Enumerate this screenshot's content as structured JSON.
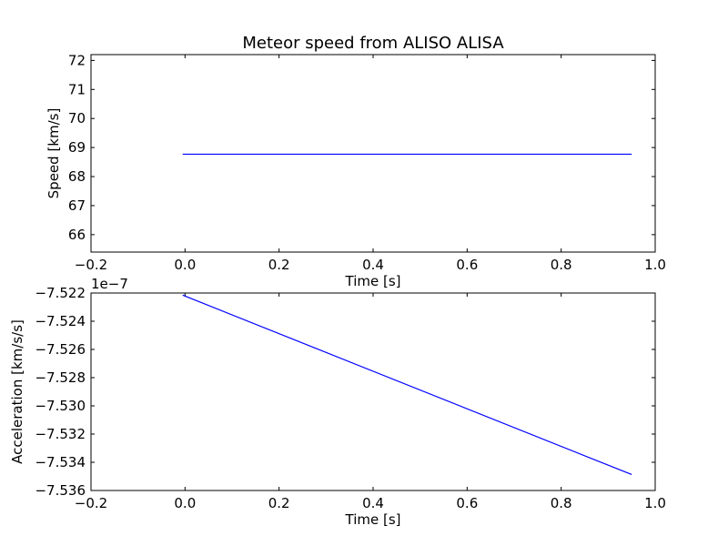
{
  "chart_data": [
    {
      "type": "line",
      "title": "Meteor speed from  ALISO ALISA",
      "xlabel": "Time [s]",
      "ylabel": "Speed [km/s]",
      "xlim": [
        -0.2,
        1.0
      ],
      "ylim": [
        65.4,
        72.2
      ],
      "xticks": [
        -0.2,
        0.0,
        0.2,
        0.4,
        0.6,
        0.8,
        1.0
      ],
      "xtick_labels": [
        "−0.2",
        "0.0",
        "0.2",
        "0.4",
        "0.6",
        "0.8",
        "1.0"
      ],
      "yticks": [
        66,
        67,
        68,
        69,
        70,
        71,
        72
      ],
      "ytick_labels": [
        "66",
        "67",
        "68",
        "69",
        "70",
        "71",
        "72"
      ],
      "grid": false,
      "series": [
        {
          "x": [
            -0.005,
            0.95
          ],
          "y": [
            68.77,
            68.77
          ],
          "color": "#0000ff"
        }
      ]
    },
    {
      "type": "line",
      "title": "",
      "xlabel": "Time [s]",
      "ylabel": "Acceleration [km/s/s]",
      "offset_text": "1e−7",
      "xlim": [
        -0.2,
        1.0
      ],
      "ylim": [
        -7.536,
        -7.522
      ],
      "xticks": [
        -0.2,
        0.0,
        0.2,
        0.4,
        0.6,
        0.8,
        1.0
      ],
      "xtick_labels": [
        "−0.2",
        "0.0",
        "0.2",
        "0.4",
        "0.6",
        "0.8",
        "1.0"
      ],
      "yticks": [
        -7.522,
        -7.524,
        -7.526,
        -7.528,
        -7.53,
        -7.532,
        -7.534,
        -7.536
      ],
      "ytick_labels": [
        "−7.522",
        "−7.524",
        "−7.526",
        "−7.528",
        "−7.530",
        "−7.532",
        "−7.534",
        "−7.536"
      ],
      "grid": false,
      "series": [
        {
          "x": [
            -0.005,
            0.95
          ],
          "y": [
            -7.52215,
            -7.53487
          ],
          "color": "#0000ff"
        }
      ]
    }
  ]
}
